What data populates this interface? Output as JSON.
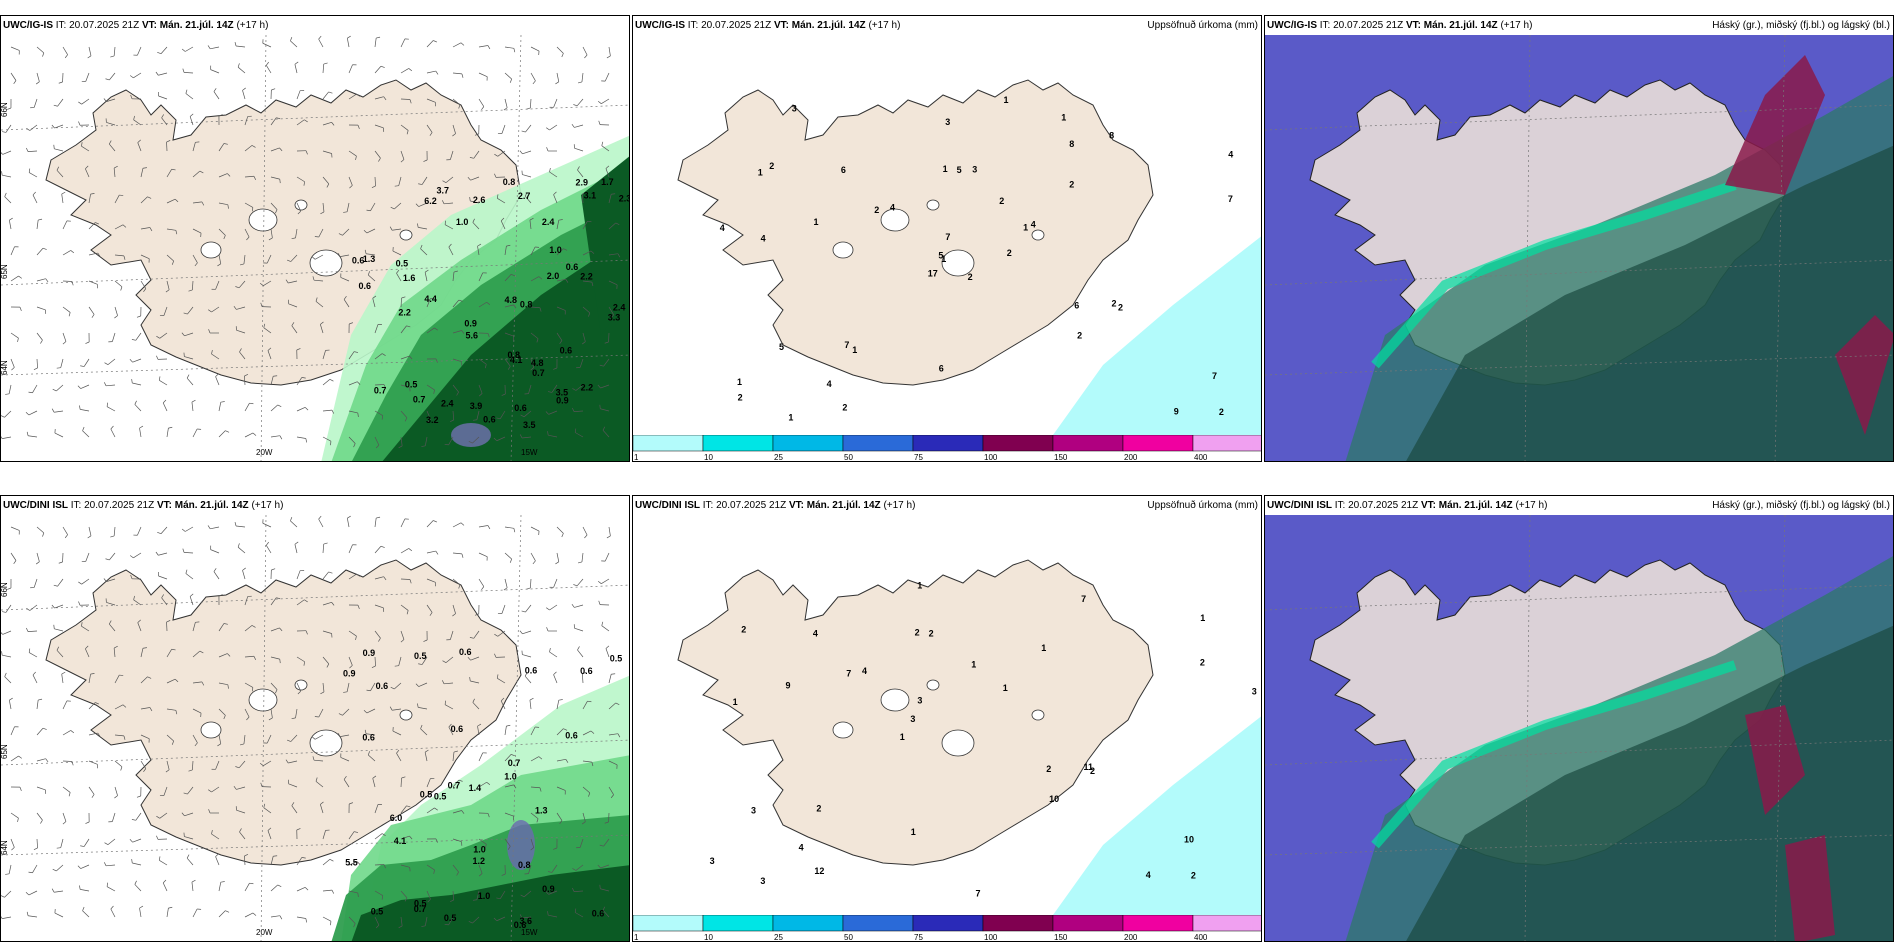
{
  "panels": [
    {
      "model": "UWC/IG-IS",
      "it": "IT: 20.07.2025 21Z",
      "vt_label": "VT:",
      "vt": "Mán. 21.júl. 14Z",
      "offset": "(+17 h)",
      "right_title": ""
    },
    {
      "model": "UWC/IG-IS",
      "it": "IT: 20.07.2025 21Z",
      "vt_label": "VT:",
      "vt": "Mán. 21.júl. 14Z",
      "offset": "(+17 h)",
      "right_title": "Uppsöfnuð úrkoma (mm)"
    },
    {
      "model": "UWC/IG-IS",
      "it": "IT: 20.07.2025 21Z",
      "vt_label": "VT:",
      "vt": "Mán. 21.júl. 14Z",
      "offset": "(+17 h)",
      "right_title": "Háský (gr.), miðský (fj.bl.) og lágský (bl.)"
    },
    {
      "model": "UWC/DINI ISL",
      "it": "IT: 20.07.2025 21Z",
      "vt_label": "VT:",
      "vt": "Mán. 21.júl. 14Z",
      "offset": "(+17 h)",
      "right_title": ""
    },
    {
      "model": "UWC/DINI ISL",
      "it": "IT: 20.07.2025 21Z",
      "vt_label": "VT:",
      "vt": "Mán. 21.júl. 14Z",
      "offset": "(+17 h)",
      "right_title": "Uppsöfnuð úrkoma (mm)"
    },
    {
      "model": "UWC/DINI ISL",
      "it": "IT: 20.07.2025 21Z",
      "vt_label": "VT:",
      "vt": "Mán. 21.júl. 14Z",
      "offset": "(+17 h)",
      "right_title": "Háský (gr.), miðský (fj.bl.) og lágský (bl.)"
    }
  ],
  "axis": {
    "lat_66": "66N",
    "lat_64": "64N",
    "lat_65": "65N",
    "lat_63": "63N",
    "lon_20": "20W",
    "lon_15": "15W"
  },
  "legend": {
    "ticks": [
      "1",
      "10",
      "25",
      "50",
      "75",
      "100",
      "150",
      "200",
      "400"
    ],
    "colors": [
      "#b3fbfb",
      "#00e5e5",
      "#00b8e6",
      "#2a6ad8",
      "#2a2ab8",
      "#800050",
      "#b00080",
      "#f000a0",
      "#f0a0f0"
    ]
  },
  "colors": {
    "land": "#f2e6d9",
    "precip_light": "#b9f6c9",
    "precip_dark": "#0b5a24",
    "accum": "#b3fbfb",
    "cloud_base": "#5a5ac8"
  },
  "labels": {
    "p0": [
      "3.5",
      "6.2",
      "0.5",
      "0.5",
      "0.6",
      "0.6",
      "3.3",
      "4.4",
      "5.6",
      "0.7",
      "0.7",
      "0.6",
      "0.9",
      "0.8",
      "2.0",
      "2.9",
      "0.6",
      "3.1",
      "0.6",
      "2.2",
      "3.5",
      "4.1",
      "3.2",
      "0.9",
      "0.8",
      "1.0",
      "2.2",
      "1.6",
      "0.6",
      "1.0",
      "0.7",
      "1.7",
      "2.4",
      "2.4",
      "3.7",
      "3.9",
      "0.8",
      "1.3",
      "2.4",
      "4.8",
      "2.6",
      "4.8",
      "2.3",
      "2.2",
      "2.7"
    ],
    "p1": [
      "2",
      "1",
      "1",
      "1",
      "1",
      "1",
      "1",
      "3",
      "8",
      "2",
      "3",
      "2",
      "4",
      "4",
      "17",
      "2",
      "1",
      "1",
      "2",
      "5",
      "4",
      "2",
      "4",
      "5",
      "4",
      "2",
      "2",
      "3",
      "4",
      "6",
      "7",
      "5",
      "6",
      "7",
      "6",
      "8",
      "7",
      "9",
      "7",
      "2",
      "1",
      "2",
      "1",
      "2",
      "2"
    ],
    "p3": [
      "0.5",
      "0.6",
      "0.5",
      "0.9",
      "0.5",
      "0.6",
      "0.5",
      "0.6",
      "0.6",
      "0.6",
      "0.6",
      "1.0",
      "0.7",
      "1.2",
      "0.6",
      "1.0",
      "0.6",
      "0.7",
      "0.5",
      "0.9",
      "0.8",
      "0.5",
      "0.7",
      "0.5",
      "0.6",
      "6.0",
      "5.5",
      "4.1",
      "0.9",
      "1.3",
      "1.4",
      "3.6",
      "1.0"
    ],
    "p4": [
      "2",
      "1",
      "1",
      "1",
      "1",
      "3",
      "2",
      "1",
      "3",
      "4",
      "3",
      "4",
      "2",
      "1",
      "2",
      "2",
      "1",
      "3",
      "2",
      "2",
      "3",
      "1",
      "3",
      "4",
      "7",
      "2",
      "4",
      "10",
      "11",
      "7",
      "7",
      "9",
      "10",
      "12"
    ]
  }
}
